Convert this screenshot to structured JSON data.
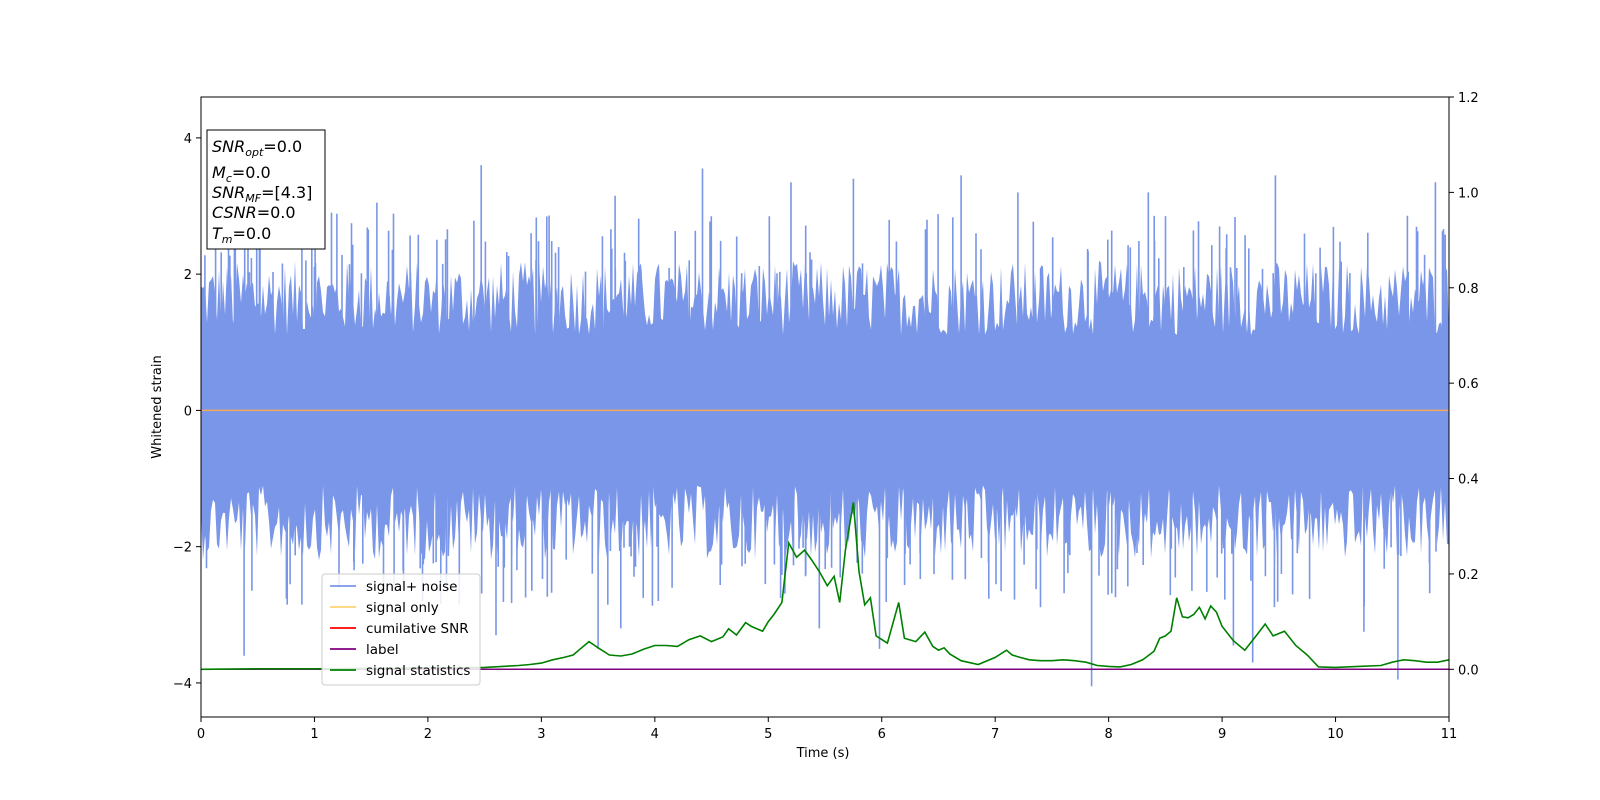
{
  "chart_data": {
    "type": "line",
    "xlabel": "Time (s)",
    "ylabel": "Whitened strain",
    "xlim": [
      0,
      11
    ],
    "ylim": [
      -4.5,
      4.6
    ],
    "y2lim": [
      -0.1,
      1.2
    ],
    "x_ticks": [
      "0",
      "1",
      "2",
      "3",
      "4",
      "5",
      "6",
      "7",
      "8",
      "9",
      "10",
      "11"
    ],
    "y_ticks": [
      "4",
      "2",
      "0",
      "−2",
      "−4"
    ],
    "y2_ticks": [
      "1.2",
      "1.0",
      "0.8",
      "0.6",
      "0.4",
      "0.2",
      "0.0"
    ],
    "info_box": {
      "snr_opt": {
        "base": "SNR",
        "sub": "opt",
        "value": "=0.0"
      },
      "mc": {
        "base": "M",
        "sub": "c",
        "value": "=0.0"
      },
      "snr_mf": {
        "base": "SNR",
        "sub": "MF",
        "value": "=[4.3]"
      },
      "csnr": {
        "base": "CSNR",
        "value": "=0.0"
      },
      "tm": {
        "base": "T",
        "sub": "m",
        "value": "=0.0"
      }
    },
    "legend": {
      "position": "lower left",
      "entries": [
        {
          "label": "signal+ noise",
          "color": "#7a96e8"
        },
        {
          "label": "signal only",
          "color": "#ffd27a"
        },
        {
          "label": "cumilative SNR",
          "color": "#ff0000"
        },
        {
          "label": "label",
          "color": "#800080"
        },
        {
          "label": "signal statistics",
          "color": "#008000"
        }
      ]
    },
    "series": [
      {
        "name": "signal+ noise",
        "axis": "left",
        "color": "#7a96e8",
        "description_values": "dense whitened noise between about -3.5 and 3.5",
        "envelope_typical": 2.0,
        "peaks": [
          [
            0.38,
            -3.6
          ],
          [
            0.52,
            2.9
          ],
          [
            1.15,
            2.9
          ],
          [
            1.55,
            3.05
          ],
          [
            2.47,
            3.6
          ],
          [
            2.6,
            -3.3
          ],
          [
            3.5,
            -3.5
          ],
          [
            3.65,
            3.15
          ],
          [
            3.7,
            -3.2
          ],
          [
            4.42,
            3.55
          ],
          [
            5.2,
            3.35
          ],
          [
            5.45,
            -3.2
          ],
          [
            5.75,
            3.4
          ],
          [
            5.98,
            -3.5
          ],
          [
            6.7,
            3.45
          ],
          [
            7.2,
            3.2
          ],
          [
            7.85,
            -4.05
          ],
          [
            8.35,
            3.2
          ],
          [
            9.1,
            -3.45
          ],
          [
            9.27,
            -3.7
          ],
          [
            9.47,
            3.45
          ],
          [
            10.25,
            -3.25
          ],
          [
            10.55,
            -3.95
          ],
          [
            10.88,
            3.35
          ]
        ]
      },
      {
        "name": "signal only",
        "axis": "left",
        "color": "#ffd27a",
        "x": [
          0,
          11
        ],
        "y": [
          0,
          0
        ]
      },
      {
        "name": "label",
        "axis": "right",
        "color": "#800080",
        "x": [
          0,
          11
        ],
        "y": [
          0,
          0
        ]
      },
      {
        "name": "signal statistics",
        "axis": "right",
        "color": "#008000",
        "x": [
          0.0,
          0.5,
          1.0,
          1.5,
          2.0,
          2.5,
          2.8,
          2.9,
          3.0,
          3.1,
          3.2,
          3.28,
          3.33,
          3.42,
          3.5,
          3.6,
          3.7,
          3.8,
          3.9,
          4.0,
          4.1,
          4.2,
          4.3,
          4.4,
          4.5,
          4.6,
          4.65,
          4.72,
          4.8,
          4.85,
          4.95,
          5.0,
          5.05,
          5.12,
          5.18,
          5.25,
          5.32,
          5.38,
          5.45,
          5.52,
          5.58,
          5.63,
          5.68,
          5.75,
          5.8,
          5.85,
          5.9,
          5.95,
          6.05,
          6.15,
          6.2,
          6.3,
          6.38,
          6.45,
          6.5,
          6.55,
          6.6,
          6.7,
          6.85,
          7.0,
          7.1,
          7.15,
          7.22,
          7.3,
          7.4,
          7.5,
          7.6,
          7.7,
          7.8,
          7.9,
          8.0,
          8.1,
          8.2,
          8.3,
          8.4,
          8.45,
          8.5,
          8.55,
          8.6,
          8.65,
          8.7,
          8.75,
          8.8,
          8.85,
          8.9,
          8.95,
          9.0,
          9.1,
          9.2,
          9.3,
          9.38,
          9.45,
          9.55,
          9.65,
          9.75,
          9.85,
          10.0,
          10.2,
          10.4,
          10.5,
          10.6,
          10.7,
          10.8,
          10.9,
          11.0
        ],
        "y": [
          0.0,
          0.001,
          0.001,
          0.002,
          0.003,
          0.004,
          0.008,
          0.01,
          0.013,
          0.02,
          0.025,
          0.03,
          0.04,
          0.058,
          0.045,
          0.03,
          0.028,
          0.032,
          0.042,
          0.05,
          0.05,
          0.048,
          0.062,
          0.07,
          0.058,
          0.068,
          0.085,
          0.072,
          0.098,
          0.09,
          0.08,
          0.1,
          0.115,
          0.14,
          0.265,
          0.235,
          0.25,
          0.23,
          0.205,
          0.175,
          0.195,
          0.14,
          0.25,
          0.35,
          0.205,
          0.135,
          0.15,
          0.07,
          0.055,
          0.14,
          0.065,
          0.058,
          0.078,
          0.048,
          0.04,
          0.045,
          0.032,
          0.018,
          0.01,
          0.025,
          0.04,
          0.03,
          0.025,
          0.02,
          0.018,
          0.018,
          0.02,
          0.018,
          0.015,
          0.008,
          0.006,
          0.005,
          0.01,
          0.02,
          0.038,
          0.065,
          0.07,
          0.08,
          0.15,
          0.11,
          0.108,
          0.115,
          0.13,
          0.106,
          0.133,
          0.12,
          0.09,
          0.06,
          0.04,
          0.07,
          0.095,
          0.07,
          0.08,
          0.05,
          0.03,
          0.005,
          0.004,
          0.006,
          0.008,
          0.015,
          0.02,
          0.018,
          0.015,
          0.015,
          0.02
        ]
      },
      {
        "name": "cumilative SNR",
        "axis": "right",
        "color": "#ff0000"
      }
    ]
  }
}
